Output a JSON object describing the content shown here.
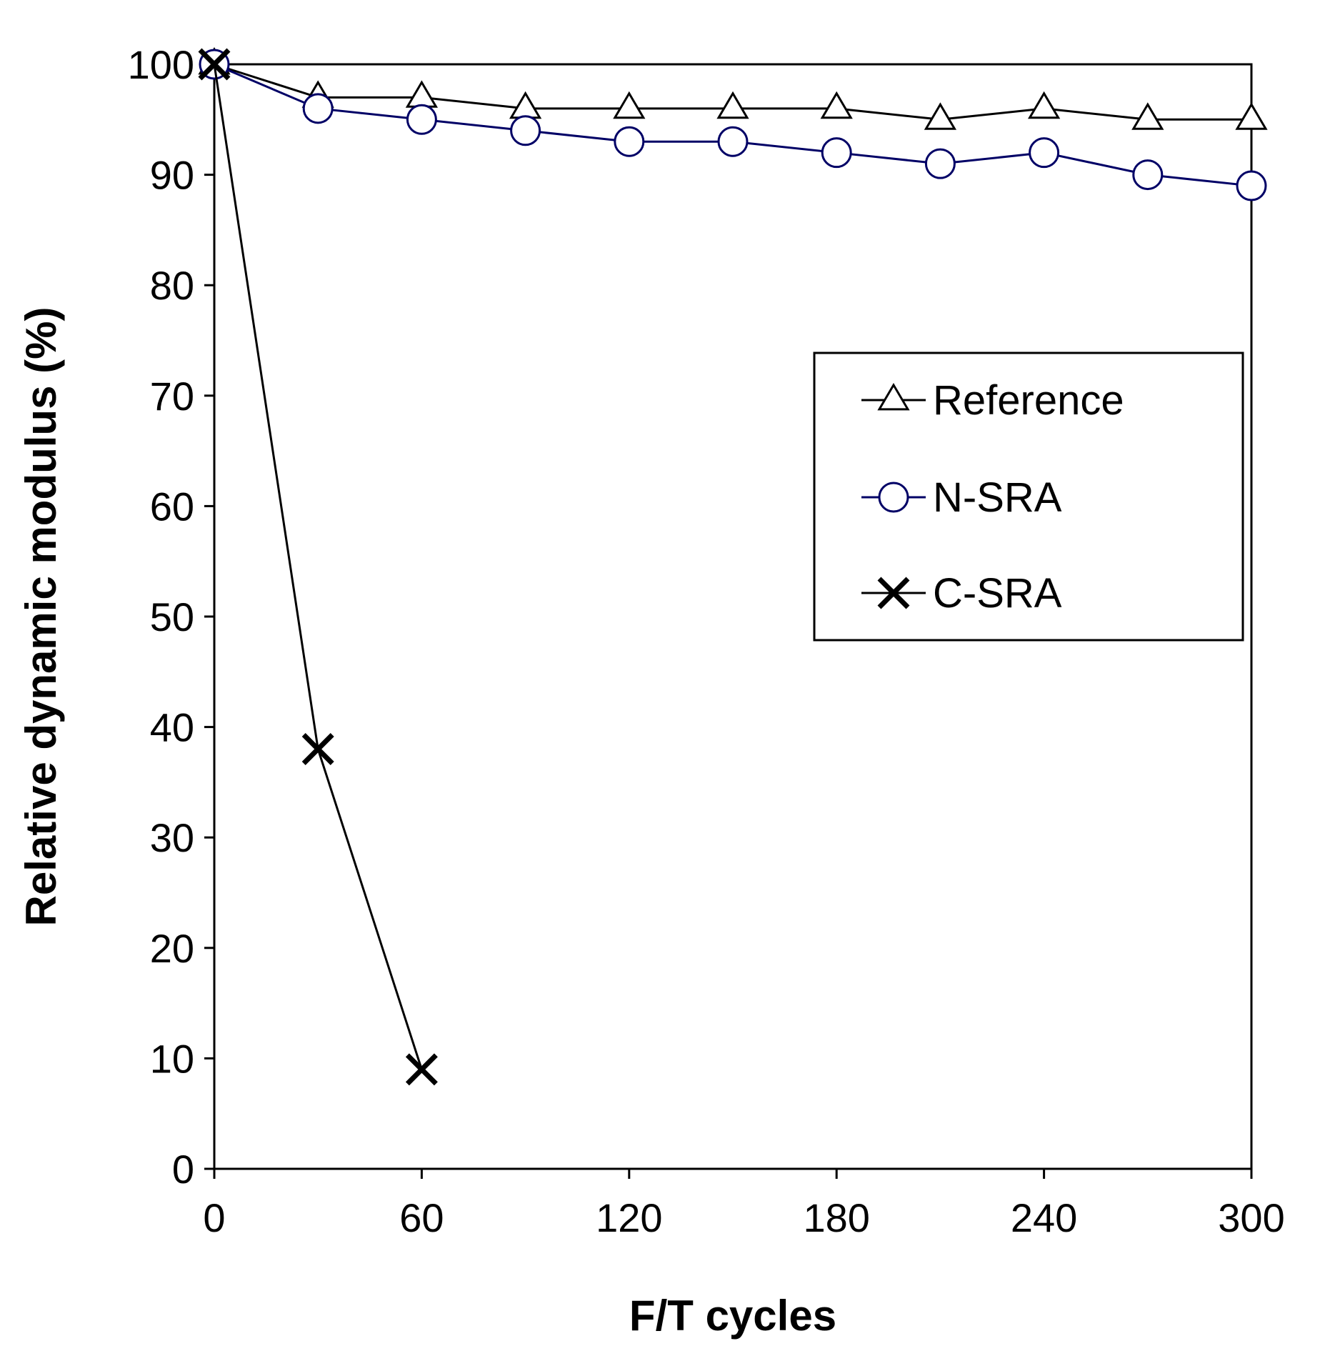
{
  "chart_data": {
    "type": "line",
    "title": "",
    "xlabel": "F/T cycles",
    "ylabel": "Relative dynamic modulus (%)",
    "xlim": [
      0,
      300
    ],
    "ylim": [
      0,
      100
    ],
    "xticks": [
      0,
      60,
      120,
      180,
      240,
      300
    ],
    "yticks": [
      0,
      10,
      20,
      30,
      40,
      50,
      60,
      70,
      80,
      90,
      100
    ],
    "grid": false,
    "legend_position": "right-middle",
    "series": [
      {
        "name": "Reference",
        "marker": "triangle",
        "color": "#000000",
        "x": [
          0,
          30,
          60,
          90,
          120,
          150,
          180,
          210,
          240,
          270,
          300
        ],
        "y": [
          100,
          97,
          97,
          96,
          96,
          96,
          96,
          95,
          96,
          95,
          95
        ]
      },
      {
        "name": "N-SRA",
        "marker": "circle",
        "color": "#000066",
        "x": [
          0,
          30,
          60,
          90,
          120,
          150,
          180,
          210,
          240,
          270,
          300
        ],
        "y": [
          100,
          96,
          95,
          94,
          93,
          93,
          92,
          91,
          92,
          90,
          89
        ]
      },
      {
        "name": "C-SRA",
        "marker": "x",
        "color": "#000000",
        "x": [
          0,
          30,
          60
        ],
        "y": [
          100,
          38,
          9
        ]
      }
    ]
  }
}
